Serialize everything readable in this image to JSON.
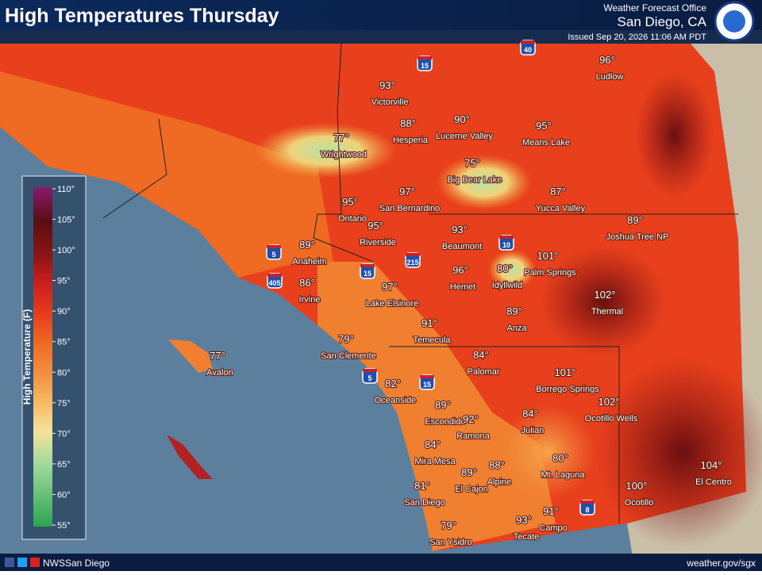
{
  "header": {
    "title": "High Temperatures Thursday",
    "office": "Weather Forecast Office",
    "location": "San Diego, CA",
    "issued": "Issued Sep 20, 2026 11:06 AM PDT"
  },
  "cities": [
    {
      "temp": "96°",
      "name": "Ludlow"
    },
    {
      "temp": "93°",
      "name": "Victorville"
    },
    {
      "temp": "88°",
      "name": "Hesperia"
    },
    {
      "temp": "90°",
      "name": "Lucerne Valley"
    },
    {
      "temp": "95°",
      "name": "Means Lake"
    },
    {
      "temp": "77°",
      "name": "Wrightwood"
    },
    {
      "temp": "75°",
      "name": "Big Bear Lake"
    },
    {
      "temp": "87°",
      "name": "Yucca Valley"
    },
    {
      "temp": "97°",
      "name": "San Bernardino"
    },
    {
      "temp": "95°",
      "name": "Ontario"
    },
    {
      "temp": "89°",
      "name": "Joshua Tree NP"
    },
    {
      "temp": "95°",
      "name": "Riverside"
    },
    {
      "temp": "93°",
      "name": "Beaumont"
    },
    {
      "temp": "89°",
      "name": "Anaheim"
    },
    {
      "temp": "101°",
      "name": "Palm Springs"
    },
    {
      "temp": "96°",
      "name": "Hemet"
    },
    {
      "temp": "80°",
      "name": "Idyllwild"
    },
    {
      "temp": "86°",
      "name": "Irvine"
    },
    {
      "temp": "97°",
      "name": "Lake Elsinore"
    },
    {
      "temp": "102°",
      "name": "Thermal"
    },
    {
      "temp": "89°",
      "name": "Anza"
    },
    {
      "temp": "91°",
      "name": "Temecula"
    },
    {
      "temp": "79°",
      "name": "San Clemente"
    },
    {
      "temp": "77°",
      "name": "Avalon"
    },
    {
      "temp": "84°",
      "name": "Palomar"
    },
    {
      "temp": "101°",
      "name": "Borrego Springs"
    },
    {
      "temp": "82°",
      "name": "Oceanside"
    },
    {
      "temp": "102°",
      "name": "Ocotillo Wells"
    },
    {
      "temp": "89°",
      "name": "Escondido"
    },
    {
      "temp": "92°",
      "name": "Ramona"
    },
    {
      "temp": "84°",
      "name": "Julian"
    },
    {
      "temp": "84°",
      "name": "Mira Mesa"
    },
    {
      "temp": "80°",
      "name": "Mt. Laguna"
    },
    {
      "temp": "88°",
      "name": "Alpine"
    },
    {
      "temp": "89°",
      "name": "El Cajon"
    },
    {
      "temp": "104°",
      "name": "El Centro"
    },
    {
      "temp": "100°",
      "name": "Ocotillo"
    },
    {
      "temp": "81°",
      "name": "San Diego"
    },
    {
      "temp": "91°",
      "name": "Campo"
    },
    {
      "temp": "93°",
      "name": "Tecate"
    },
    {
      "temp": "79°",
      "name": "San Ysidro"
    }
  ],
  "shields": [
    "15",
    "40",
    "5",
    "405",
    "215",
    "10",
    "15",
    "5",
    "15",
    "8"
  ],
  "legend": {
    "title": "High Temperature (F)",
    "ticks": [
      "110°",
      "105°",
      "100°",
      "95°",
      "90°",
      "85°",
      "80°",
      "75°",
      "70°",
      "65°",
      "60°",
      "55°"
    ]
  },
  "footer": {
    "account": "NWSSan Diego",
    "url": "weather.gov/sgx"
  }
}
